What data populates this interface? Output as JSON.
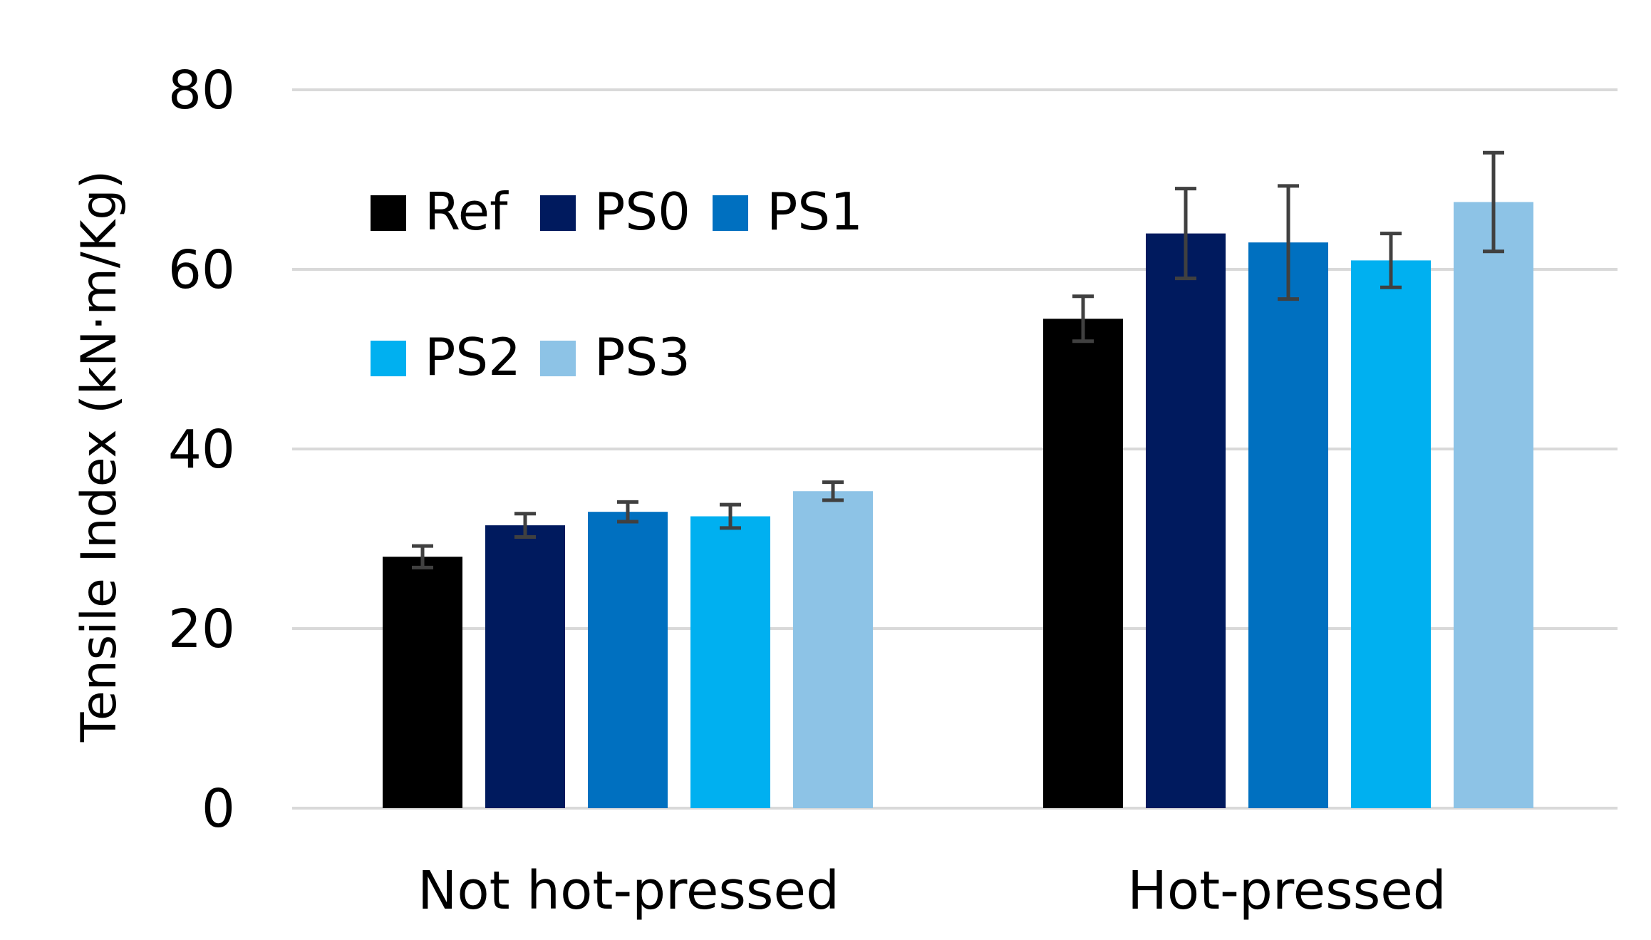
{
  "chart_data": {
    "type": "bar",
    "title": "",
    "xlabel": "",
    "ylabel": "Tensile Index (kN·m/Kg)",
    "ylim": [
      0,
      80
    ],
    "yticks": [
      0,
      20,
      40,
      60,
      80
    ],
    "grid": true,
    "legend_position": "top-left",
    "categories": [
      "Not hot-pressed",
      "Hot-pressed"
    ],
    "series": [
      {
        "name": "Ref",
        "color": "#000000",
        "values": [
          28.0,
          54.5
        ],
        "errors": [
          1.2,
          2.5
        ]
      },
      {
        "name": "PS0",
        "color": "#001a5e",
        "values": [
          31.5,
          64.0
        ],
        "errors": [
          1.3,
          5.0
        ]
      },
      {
        "name": "PS1",
        "color": "#0070c0",
        "values": [
          33.0,
          63.0
        ],
        "errors": [
          1.1,
          6.3
        ]
      },
      {
        "name": "PS2",
        "color": "#00b0f0",
        "values": [
          32.5,
          61.0
        ],
        "errors": [
          1.3,
          3.0
        ]
      },
      {
        "name": "PS3",
        "color": "#8dc3e6",
        "values": [
          35.3,
          67.5
        ],
        "errors": [
          1.0,
          5.5
        ]
      }
    ]
  }
}
